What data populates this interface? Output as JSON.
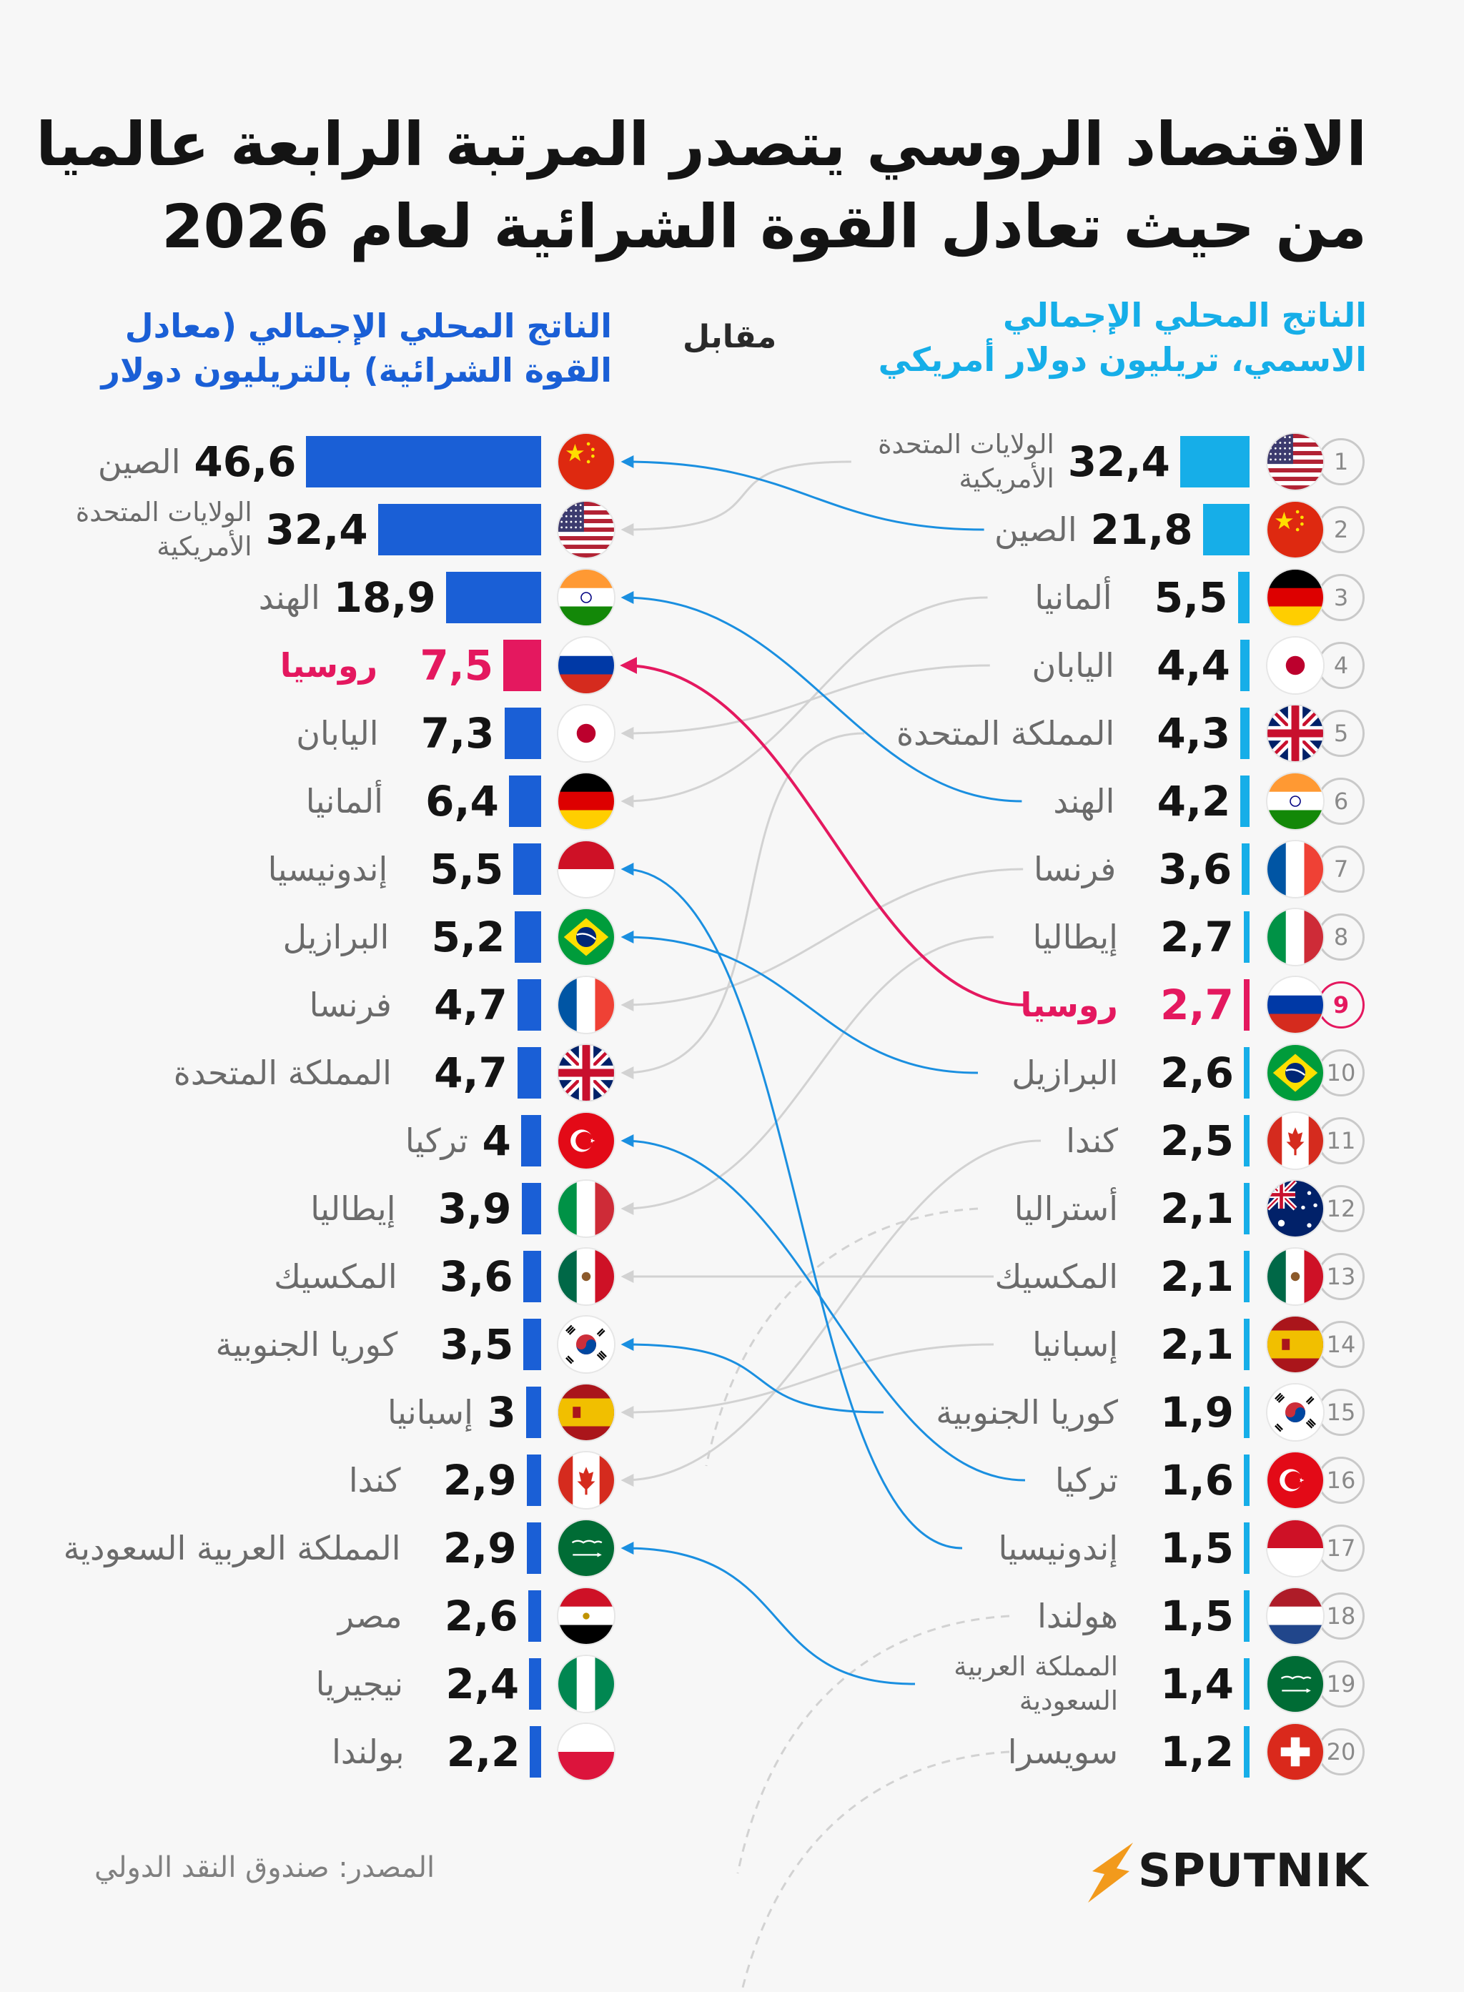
{
  "title_line1": "الاقتصاد الروسي يتصدر المرتبة الرابعة عالميا",
  "title_line2": "من حيث تعادل القوة الشرائية لعام 2026",
  "versus_label": "مقابل",
  "source": "المصدر: صندوق النقد الدولي",
  "logo_text": "SPUTNIK",
  "colors": {
    "nominal_bar": "#16aee8",
    "ppp_bar": "#1a5fd6",
    "russia": "#e4185f",
    "gray_link": "#d2d2d2",
    "title": "#141414"
  },
  "chart_data": [
    {
      "type": "bar",
      "title": "الناتج المحلي الإجمالي الاسمي، تريليون دولار أمريكي",
      "title_line1": "الناتج المحلي الإجمالي",
      "title_line2": "الاسمي، تريليون دولار أمريكي",
      "orientation": "horizontal",
      "ranks": [
        1,
        2,
        3,
        4,
        5,
        6,
        7,
        8,
        9,
        10,
        11,
        12,
        13,
        14,
        15,
        16,
        17,
        18,
        19,
        20
      ],
      "categories": [
        "الولايات المتحدة الأمريكية",
        "الصين",
        "ألمانيا",
        "اليابان",
        "المملكة المتحدة",
        "الهند",
        "فرنسا",
        "إيطاليا",
        "روسيا",
        "البرازيل",
        "كندا",
        "أستراليا",
        "المكسيك",
        "إسبانيا",
        "كوريا الجنوبية",
        "تركيا",
        "إندونيسيا",
        "هولندا",
        "المملكة العربية السعودية",
        "سويسرا"
      ],
      "value_labels": [
        "32,4",
        "21,8",
        "5,5",
        "4,4",
        "4,3",
        "4,2",
        "3,6",
        "2,7",
        "2,7",
        "2,6",
        "2,5",
        "2,1",
        "2,1",
        "2,1",
        "1,9",
        "1,6",
        "1,5",
        "1,5",
        "1,4",
        "1,2"
      ],
      "values": [
        32.4,
        21.8,
        5.5,
        4.4,
        4.3,
        4.2,
        3.6,
        2.7,
        2.7,
        2.6,
        2.5,
        2.1,
        2.1,
        2.1,
        1.9,
        1.6,
        1.5,
        1.5,
        1.4,
        1.2
      ],
      "flags": [
        "us",
        "cn",
        "de",
        "jp",
        "gb",
        "in",
        "fr",
        "it",
        "ru",
        "br",
        "ca",
        "au",
        "mx",
        "es",
        "kr",
        "tr",
        "id",
        "nl",
        "sa",
        "ch"
      ]
    },
    {
      "type": "bar",
      "title": "الناتج المحلي الإجمالي (معادل القوة الشرائية) بالتريليون دولار",
      "title_line1": "الناتج المحلي الإجمالي (معادل",
      "title_line2": "القوة الشرائية) بالتريليون دولار",
      "orientation": "horizontal",
      "categories": [
        "الصين",
        "الولايات المتحدة الأمريكية",
        "الهند",
        "روسيا",
        "اليابان",
        "ألمانيا",
        "إندونيسيا",
        "البرازيل",
        "فرنسا",
        "المملكة المتحدة",
        "تركيا",
        "إيطاليا",
        "المكسيك",
        "كوريا الجنوبية",
        "إسبانيا",
        "كندا",
        "المملكة العربية السعودية",
        "مصر",
        "نيجيريا",
        "بولندا"
      ],
      "value_labels": [
        "46,6",
        "32,4",
        "18,9",
        "7,5",
        "7,3",
        "6,4",
        "5,5",
        "5,2",
        "4,7",
        "4,7",
        "4",
        "3,9",
        "3,6",
        "3,5",
        "3",
        "2,9",
        "2,9",
        "2,6",
        "2,4",
        "2,2"
      ],
      "values": [
        46.6,
        32.4,
        18.9,
        7.5,
        7.3,
        6.4,
        5.5,
        5.2,
        4.7,
        4.7,
        4,
        3.9,
        3.6,
        3.5,
        3,
        2.9,
        2.9,
        2.6,
        2.4,
        2.2
      ],
      "flags": [
        "cn",
        "us",
        "in",
        "ru",
        "jp",
        "de",
        "id",
        "br",
        "fr",
        "gb",
        "tr",
        "it",
        "mx",
        "kr",
        "es",
        "ca",
        "sa",
        "eg",
        "ng",
        "pl"
      ]
    }
  ],
  "links": [
    {
      "from": 1,
      "to": 2,
      "style": "gray"
    },
    {
      "from": 2,
      "to": 1,
      "style": "blue"
    },
    {
      "from": 3,
      "to": 6,
      "style": "gray"
    },
    {
      "from": 4,
      "to": 5,
      "style": "gray"
    },
    {
      "from": 5,
      "to": 10,
      "style": "gray"
    },
    {
      "from": 6,
      "to": 3,
      "style": "blue"
    },
    {
      "from": 7,
      "to": 9,
      "style": "gray"
    },
    {
      "from": 8,
      "to": 12,
      "style": "gray"
    },
    {
      "from": 9,
      "to": 4,
      "style": "red"
    },
    {
      "from": 10,
      "to": 8,
      "style": "blue"
    },
    {
      "from": 11,
      "to": 16,
      "style": "gray"
    },
    {
      "from": 12,
      "to": null,
      "style": "dashed"
    },
    {
      "from": 13,
      "to": 13,
      "style": "gray"
    },
    {
      "from": 14,
      "to": 15,
      "style": "gray"
    },
    {
      "from": 15,
      "to": 14,
      "style": "blue"
    },
    {
      "from": 16,
      "to": 11,
      "style": "blue"
    },
    {
      "from": 17,
      "to": 7,
      "style": "blue"
    },
    {
      "from": 18,
      "to": null,
      "style": "dashed"
    },
    {
      "from": 19,
      "to": 17,
      "style": "blue"
    },
    {
      "from": 20,
      "to": null,
      "style": "dashed"
    }
  ]
}
